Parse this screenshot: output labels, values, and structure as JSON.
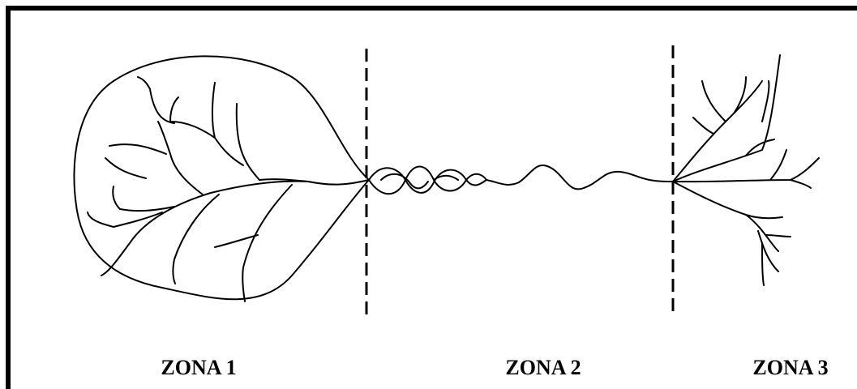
{
  "zones": [
    {
      "label": "ZONA 1"
    },
    {
      "label": "ZONA 2"
    },
    {
      "label": "ZONA 3"
    }
  ]
}
